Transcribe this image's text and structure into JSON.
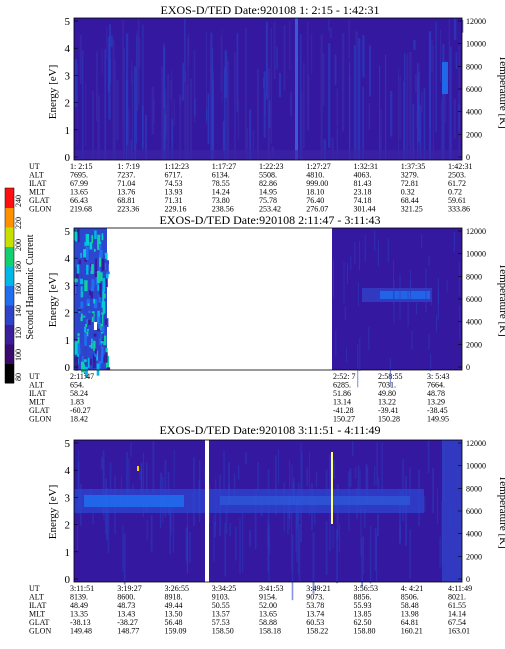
{
  "colorbar": {
    "label": "Second Harmonic Current",
    "ticks": [
      "80",
      "100",
      "120",
      "140",
      "160",
      "180",
      "200",
      "220",
      "240"
    ],
    "colors": [
      "#000000",
      "#3a0a6e",
      "#3b1f9a",
      "#2f42c8",
      "#1f6ff0",
      "#00b8e8",
      "#10d070",
      "#c8e000",
      "#ff9000",
      "#ff1010"
    ]
  },
  "panels": [
    {
      "title": "EXOS-D/TED   Date:920108   1: 2:15 - 1:42:31",
      "ylabel": "Energy [eV]",
      "y2label": "Temperature [K]",
      "yticks": [
        "0",
        "1",
        "2",
        "3",
        "4",
        "5"
      ],
      "y2ticks": [
        "0",
        "2000",
        "4000",
        "6000",
        "8000",
        "10000",
        "12000"
      ],
      "ephem_labels": [
        "UT",
        "ALT",
        "ILAT",
        "MLT",
        "GLAT",
        "GLON"
      ],
      "columns": [
        [
          "1: 2:15",
          "7695.",
          "67.99",
          "13.65",
          "66.43",
          "219.68"
        ],
        [
          "1: 7:19",
          "7237.",
          "71.04",
          "13.76",
          "68.81",
          "223.36"
        ],
        [
          "1:12:23",
          "6717.",
          "74.53",
          "13.93",
          "71.31",
          "229.16"
        ],
        [
          "1:17:27",
          "6134.",
          "78.55",
          "14.24",
          "73.80",
          "238.56"
        ],
        [
          "1:22:23",
          "5508.",
          "82.86",
          "14.95",
          "75.78",
          "253.42"
        ],
        [
          "1:27:27",
          "4810.",
          "999.00",
          "18.10",
          "76.40",
          "276.07"
        ],
        [
          "1:32:31",
          "4063.",
          "81.43",
          "23.18",
          "74.18",
          "301.44"
        ],
        [
          "1:37:35",
          "3279.",
          "72.81",
          "0.32",
          "68.44",
          "321.25"
        ],
        [
          "1:42:31",
          "2503.",
          "61.72",
          "0.72",
          "59.61",
          "333.86"
        ]
      ]
    },
    {
      "title": "EXOS-D/TED   Date:920108   2:11:47 - 3:11:43",
      "ylabel": "Energy [eV]",
      "y2label": "Temperature [K]",
      "yticks": [
        "0",
        "1",
        "2",
        "3",
        "4",
        "5"
      ],
      "y2ticks": [
        "0",
        "2000",
        "4000",
        "6000",
        "8000",
        "10000",
        "12000"
      ],
      "ephem_labels": [
        "UT",
        "ALT",
        "ILAT",
        "MLT",
        "GLAT",
        "GLON"
      ],
      "columns": [
        [
          "2:11:47",
          "654.",
          "58.24",
          "1.83",
          "-60.27",
          "18.42"
        ],
        [
          "2:52: 7",
          "6285.",
          "51.86",
          "13.14",
          "-41.28",
          "150.27"
        ],
        [
          "2:58:55",
          "7031.",
          "49.80",
          "13.22",
          "-39.41",
          "150.28"
        ],
        [
          "3: 5:43",
          "7664.",
          "48.78",
          "13.29",
          "-38.45",
          "149.95"
        ]
      ]
    },
    {
      "title": "EXOS-D/TED   Date:920108   3:11:51 - 4:11:49",
      "ylabel": "Energy [eV]",
      "y2label": "Temperature [K]",
      "yticks": [
        "0",
        "1",
        "2",
        "3",
        "4",
        "5"
      ],
      "y2ticks": [
        "0",
        "2000",
        "4000",
        "6000",
        "8000",
        "10000",
        "12000"
      ],
      "ephem_labels": [
        "UT",
        "ALT",
        "ILAT",
        "MLT",
        "GLAT",
        "GLON"
      ],
      "columns": [
        [
          "3:11:51",
          "8139.",
          "48.49",
          "13.35",
          "-38.13",
          "149.48"
        ],
        [
          "3:19:27",
          "8600.",
          "48.73",
          "13.43",
          "-38.27",
          "148.77"
        ],
        [
          "3:26:55",
          "8918.",
          "49.44",
          "13.50",
          "56.48",
          "159.09"
        ],
        [
          "3:34:25",
          "9103.",
          "50.55",
          "13.57",
          "57.53",
          "158.50"
        ],
        [
          "3:41:53",
          "9154.",
          "52.00",
          "13.65",
          "58.88",
          "158.18"
        ],
        [
          "3:49:21",
          "9073.",
          "53.78",
          "13.74",
          "60.53",
          "158.22"
        ],
        [
          "3:56:53",
          "8856.",
          "55.93",
          "13.85",
          "62.50",
          "158.80"
        ],
        [
          "4: 4:21",
          "8506.",
          "58.48",
          "13.98",
          "64.81",
          "160.21"
        ],
        [
          "4:11:49",
          "8021.",
          "61.55",
          "14.14",
          "67.54",
          "163.01"
        ]
      ]
    }
  ]
}
